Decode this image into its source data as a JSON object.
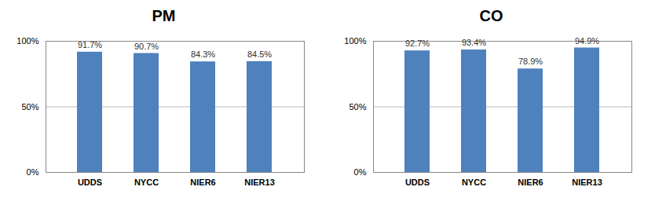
{
  "chart_data": [
    {
      "type": "bar",
      "title": "PM",
      "categories": [
        "UDDS",
        "NYCC",
        "NIER6",
        "NIER13"
      ],
      "values": [
        91.7,
        90.7,
        84.3,
        84.5
      ],
      "value_labels": [
        "91.7%",
        "90.7%",
        "84.3%",
        "84.5%"
      ],
      "color": "#4f81bd",
      "ylim": [
        0,
        100
      ],
      "yticks": [
        {
          "value": 0,
          "label": "0%"
        },
        {
          "value": 50,
          "label": "50%"
        },
        {
          "value": 100,
          "label": "100%"
        }
      ],
      "grid": true,
      "data_labels": true
    },
    {
      "type": "bar",
      "title": "CO",
      "categories": [
        "UDDS",
        "NYCC",
        "NIER6",
        "NIER13"
      ],
      "values": [
        92.7,
        93.4,
        78.9,
        94.9
      ],
      "value_labels": [
        "92.7%",
        "93.4%",
        "78.9%",
        "94.9%"
      ],
      "color": "#4f81bd",
      "ylim": [
        0,
        100
      ],
      "yticks": [
        {
          "value": 0,
          "label": "0%"
        },
        {
          "value": 50,
          "label": "50%"
        },
        {
          "value": 100,
          "label": "100%"
        }
      ],
      "grid": true,
      "data_labels": true
    }
  ]
}
